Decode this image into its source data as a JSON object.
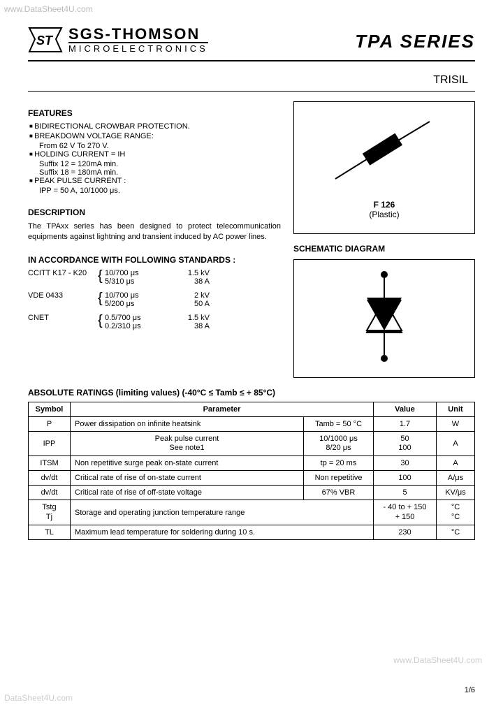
{
  "watermarks": {
    "top": "www.DataSheet4U.com",
    "bottom_left": "DataSheet4U.com",
    "bottom_right": "www.DataSheet4U.com"
  },
  "company": {
    "main": "SGS-THOMSON",
    "sub": "MICROELECTRONICS"
  },
  "title": "TPA SERIES",
  "subtitle": "TRISIL",
  "features": {
    "heading": "FEATURES",
    "items": [
      {
        "label": "BIDIRECTIONAL CROWBAR PROTECTION."
      },
      {
        "label": "BREAKDOWN VOLTAGE RANGE:",
        "sub": [
          "From 62 V To 270 V."
        ]
      },
      {
        "label": "HOLDING CURRENT = I",
        "label_sub": "H",
        "sub": [
          "Suffix 12 = 120mA min.",
          "Suffix 18 = 180mA min."
        ]
      },
      {
        "label": "PEAK PULSE CURRENT :",
        "sub": [
          "IPP = 50 A, 10/1000 μs."
        ]
      }
    ]
  },
  "description": {
    "heading": "DESCRIPTION",
    "text": "The TPAxx series has been designed to protect telecommunication equipments against lightning and transient induced by AC power lines."
  },
  "package": {
    "name": "F 126",
    "material": "(Plastic)"
  },
  "schematic": {
    "heading": "SCHEMATIC DIAGRAM"
  },
  "standards": {
    "heading": "IN ACCORDANCE WITH FOLLOWING STANDARDS :",
    "rows": [
      {
        "name": "CCITT K17 - K20",
        "lines": [
          [
            "10/700 μs",
            "1.5 kV"
          ],
          [
            "5/310 μs",
            "38 A"
          ]
        ]
      },
      {
        "name": "VDE 0433",
        "lines": [
          [
            "10/700 μs",
            "2 kV"
          ],
          [
            "5/200 μs",
            "50 A"
          ]
        ]
      },
      {
        "name": "CNET",
        "lines": [
          [
            "0.5/700 μs",
            "1.5 kV"
          ],
          [
            "0.2/310 μs",
            "38 A"
          ]
        ]
      }
    ]
  },
  "ratings": {
    "heading": "ABSOLUTE RATINGS (limiting values) (-40°C ≤ Tamb ≤ + 85°C)",
    "columns": [
      "Symbol",
      "Parameter",
      "Value",
      "Unit"
    ],
    "rows": [
      {
        "sym": "P",
        "param": "Power dissipation on infinite heatsink",
        "cond": "Tamb = 50 °C",
        "val": "1.7",
        "unit": "W"
      },
      {
        "sym": "IPP",
        "param": "Peak pulse current\nSee note1",
        "cond": "10/1000 μs\n8/20 μs",
        "val": "50\n100",
        "unit": "A"
      },
      {
        "sym": "ITSM",
        "param": "Non repetitive surge peak on-state current",
        "cond": "tp = 20 ms",
        "val": "30",
        "unit": "A"
      },
      {
        "sym": "dv/dt",
        "param": "Critical rate of rise of on-state current",
        "cond": "Non repetitive",
        "val": "100",
        "unit": "A/μs"
      },
      {
        "sym": "dv/dt",
        "param": "Critical rate of rise of off-state voltage",
        "cond": "67% VBR",
        "val": "5",
        "unit": "KV/μs"
      },
      {
        "sym": "Tstg\nTj",
        "param": "Storage and operating junction temperature range",
        "cond": "",
        "val": "- 40 to + 150\n+ 150",
        "unit": "°C\n°C"
      },
      {
        "sym": "TL",
        "param": "Maximum lead temperature for soldering during 10 s.",
        "cond": "",
        "val": "230",
        "unit": "°C"
      }
    ]
  },
  "page": "1/6",
  "colors": {
    "text": "#000000",
    "bg": "#ffffff",
    "watermark": "#bbbbbb"
  }
}
